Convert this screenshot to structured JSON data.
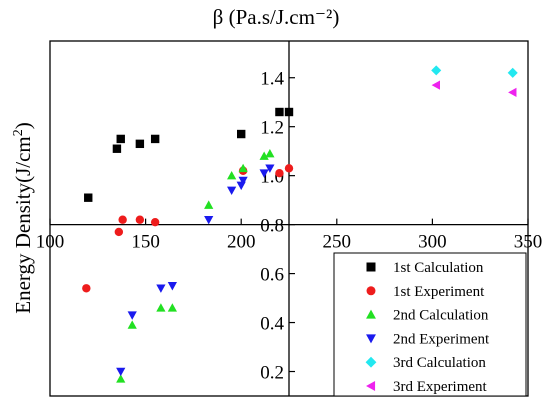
{
  "chart_data": {
    "type": "scatter",
    "title": "",
    "top_axis_label": "β (Pa.s/J.cm⁻²)",
    "ylabel_text": "Energy Density(J/cm",
    "ylabel_sup": "2",
    "ylabel_close": ")",
    "xlim": [
      100,
      350
    ],
    "ylim": [
      0.1,
      1.55
    ],
    "x_ticks": [
      100,
      150,
      200,
      250,
      300,
      350
    ],
    "x_tick_labels": [
      "100",
      "150",
      "200",
      "250",
      "300",
      "350"
    ],
    "y_ticks": [
      0.2,
      0.4,
      0.6,
      0.8,
      1.0,
      1.2,
      1.4
    ],
    "y_tick_labels": [
      "0.2",
      "0.4",
      "0.6",
      "0.8",
      "1.0",
      "1.2",
      "1.4"
    ],
    "x_axis_crosses_y": 0.8,
    "y_axis_crosses_x": 225,
    "legend_position": "bottom-right",
    "series": [
      {
        "name": "1st  Calculation",
        "marker": "square",
        "color": "#000000",
        "points": [
          [
            120,
            0.91
          ],
          [
            135,
            1.11
          ],
          [
            137,
            1.15
          ],
          [
            147,
            1.13
          ],
          [
            155,
            1.15
          ],
          [
            200,
            1.17
          ],
          [
            220,
            1.26
          ],
          [
            225,
            1.26
          ]
        ]
      },
      {
        "name": "1st  Experiment",
        "marker": "circle",
        "color": "#ee1c1c",
        "points": [
          [
            119,
            0.54
          ],
          [
            136,
            0.77
          ],
          [
            138,
            0.82
          ],
          [
            147,
            0.82
          ],
          [
            155,
            0.81
          ],
          [
            201,
            1.02
          ],
          [
            220,
            1.01
          ],
          [
            225,
            1.03
          ]
        ]
      },
      {
        "name": "2nd  Calculation",
        "marker": "triangle-up",
        "color": "#22e022",
        "points": [
          [
            137,
            0.17
          ],
          [
            143,
            0.39
          ],
          [
            158,
            0.46
          ],
          [
            164,
            0.46
          ],
          [
            183,
            0.88
          ],
          [
            195,
            1.0
          ],
          [
            201,
            1.03
          ],
          [
            212,
            1.08
          ],
          [
            215,
            1.09
          ]
        ]
      },
      {
        "name": "2nd  Experiment",
        "marker": "triangle-down",
        "color": "#1a1aee",
        "points": [
          [
            137,
            0.2
          ],
          [
            143,
            0.43
          ],
          [
            158,
            0.54
          ],
          [
            164,
            0.55
          ],
          [
            183,
            0.82
          ],
          [
            195,
            0.94
          ],
          [
            200,
            0.96
          ],
          [
            201,
            0.98
          ],
          [
            212,
            1.01
          ],
          [
            215,
            1.03
          ]
        ]
      },
      {
        "name": "3rd  Calculation",
        "marker": "diamond",
        "color": "#22e8f0",
        "points": [
          [
            302,
            1.43
          ],
          [
            342,
            1.42
          ]
        ]
      },
      {
        "name": "3rd  Experiment",
        "marker": "triangle-left",
        "color": "#ee22ee",
        "points": [
          [
            302,
            1.37
          ],
          [
            342,
            1.34
          ]
        ]
      }
    ]
  }
}
